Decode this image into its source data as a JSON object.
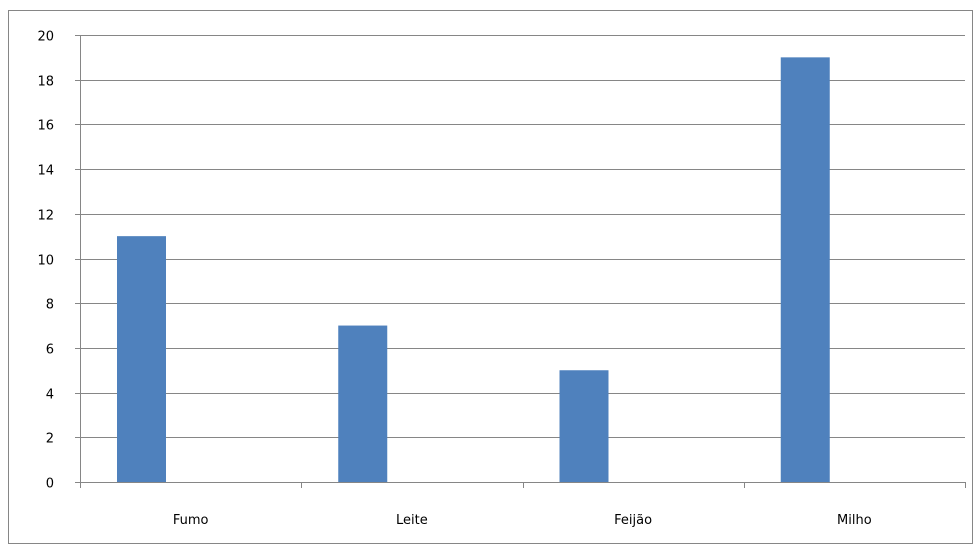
{
  "chart_data": {
    "type": "bar",
    "categories": [
      "Fumo",
      "Leite",
      "Feijão",
      "Milho"
    ],
    "series": [
      {
        "values": [
          11,
          7,
          5,
          19
        ]
      }
    ],
    "ylim": [
      0,
      20
    ],
    "yticks": [
      0,
      2,
      4,
      6,
      8,
      10,
      12,
      14,
      16,
      18,
      20
    ],
    "grid": true,
    "colors": {
      "bar": "#4F81BD",
      "grid": "#868686",
      "axis": "#868686"
    }
  }
}
